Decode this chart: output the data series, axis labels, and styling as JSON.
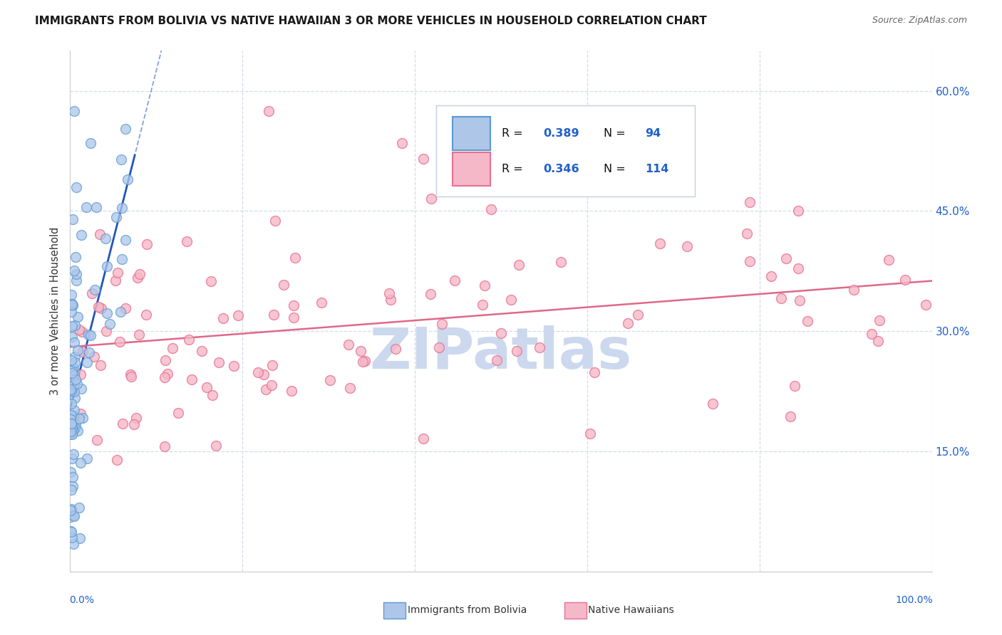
{
  "title": "IMMIGRANTS FROM BOLIVIA VS NATIVE HAWAIIAN 3 OR MORE VEHICLES IN HOUSEHOLD CORRELATION CHART",
  "source": "Source: ZipAtlas.com",
  "ylabel": "3 or more Vehicles in Household",
  "xlim": [
    0.0,
    1.0
  ],
  "ylim": [
    0.0,
    0.65
  ],
  "yticks": [
    0.0,
    0.15,
    0.3,
    0.45,
    0.6
  ],
  "xticks": [
    0.0,
    0.2,
    0.4,
    0.6,
    0.8,
    1.0
  ],
  "bolivia_R": 0.389,
  "bolivia_N": 94,
  "hawaii_R": 0.346,
  "hawaii_N": 114,
  "bolivia_fill": "#aec6e8",
  "bolivia_edge": "#5b9bd5",
  "hawaii_fill": "#f5b8c8",
  "hawaii_edge": "#e87090",
  "trendline_bolivia_color": "#2255bb",
  "trendline_hawaii_color": "#e06888",
  "legend_R_color": "#2060cc",
  "watermark_color": "#ccd8ee",
  "background_color": "#ffffff",
  "grid_color": "#d4dce8",
  "title_color": "#1a1a1a",
  "axis_label_color": "#2060cc",
  "right_ytick_color": "#2060cc"
}
